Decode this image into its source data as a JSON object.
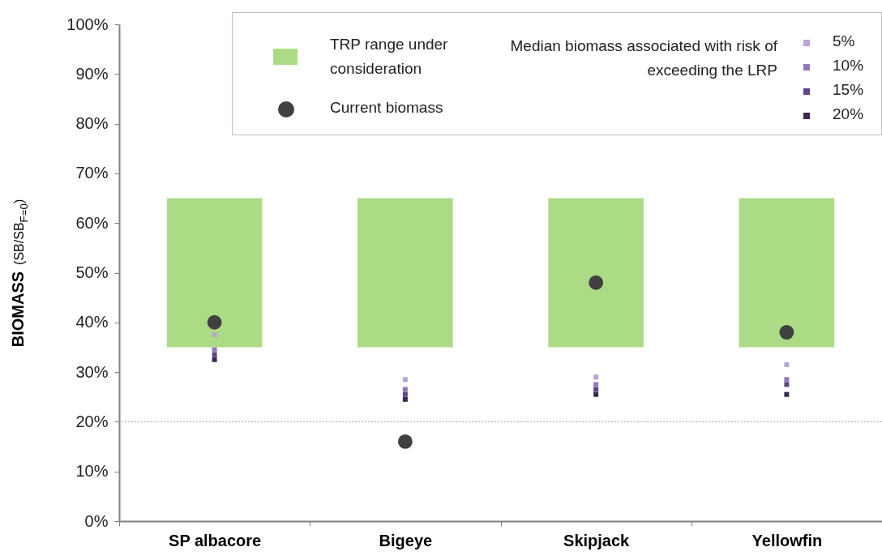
{
  "chart_data": {
    "type": "scatter",
    "ylabel": "BIOMASS (SB/SB$_{F=0}$)",
    "legend_title": "Median biomass associated with risk of exceeding the LRP",
    "legend": "top right",
    "grid": false,
    "categories": [
      "SP albacore",
      "Bigeye",
      "Skipjack",
      "Yellowfin"
    ],
    "ylim": [
      0,
      100
    ],
    "yticks": [
      {
        "value": 0,
        "label": "0%"
      },
      {
        "value": 10,
        "label": "10%"
      },
      {
        "value": 20,
        "label": "20%"
      },
      {
        "value": 30,
        "label": "30%"
      },
      {
        "value": 40,
        "label": "40%"
      },
      {
        "value": 50,
        "label": "50%"
      },
      {
        "value": 60,
        "label": "60%"
      },
      {
        "value": 70,
        "label": "70%"
      },
      {
        "value": 80,
        "label": "80%"
      },
      {
        "value": 90,
        "label": "90%"
      },
      {
        "value": 100,
        "label": "100%"
      }
    ],
    "ref_lines": [
      {
        "axis": "y",
        "value": 20,
        "color": "#a6a6a6",
        "line_style": "dotted"
      }
    ],
    "series": [
      {
        "name": "TRP range under consideration",
        "type": "bar",
        "color": "#acdb85",
        "base": [
          35,
          35,
          35,
          35
        ],
        "values": [
          30,
          30,
          30,
          30
        ]
      },
      {
        "name": "5%",
        "marker": "square",
        "color": "#b8a6d4",
        "values": [
          37.5,
          28.5,
          29,
          31.5
        ]
      },
      {
        "name": "10%",
        "marker": "square",
        "color": "#9478bf",
        "values": [
          34.5,
          26.5,
          27.5,
          28.5
        ]
      },
      {
        "name": "15%",
        "marker": "square",
        "color": "#5e4584",
        "values": [
          33.5,
          25.5,
          26.5,
          27.5
        ]
      },
      {
        "name": "20%",
        "marker": "square",
        "color": "#3a2a52",
        "values": [
          32.5,
          24.5,
          25.5,
          25.5
        ]
      },
      {
        "name": "Current biomass",
        "marker": "circle",
        "color": "#404040",
        "values": [
          40,
          16,
          48,
          38
        ]
      }
    ]
  }
}
